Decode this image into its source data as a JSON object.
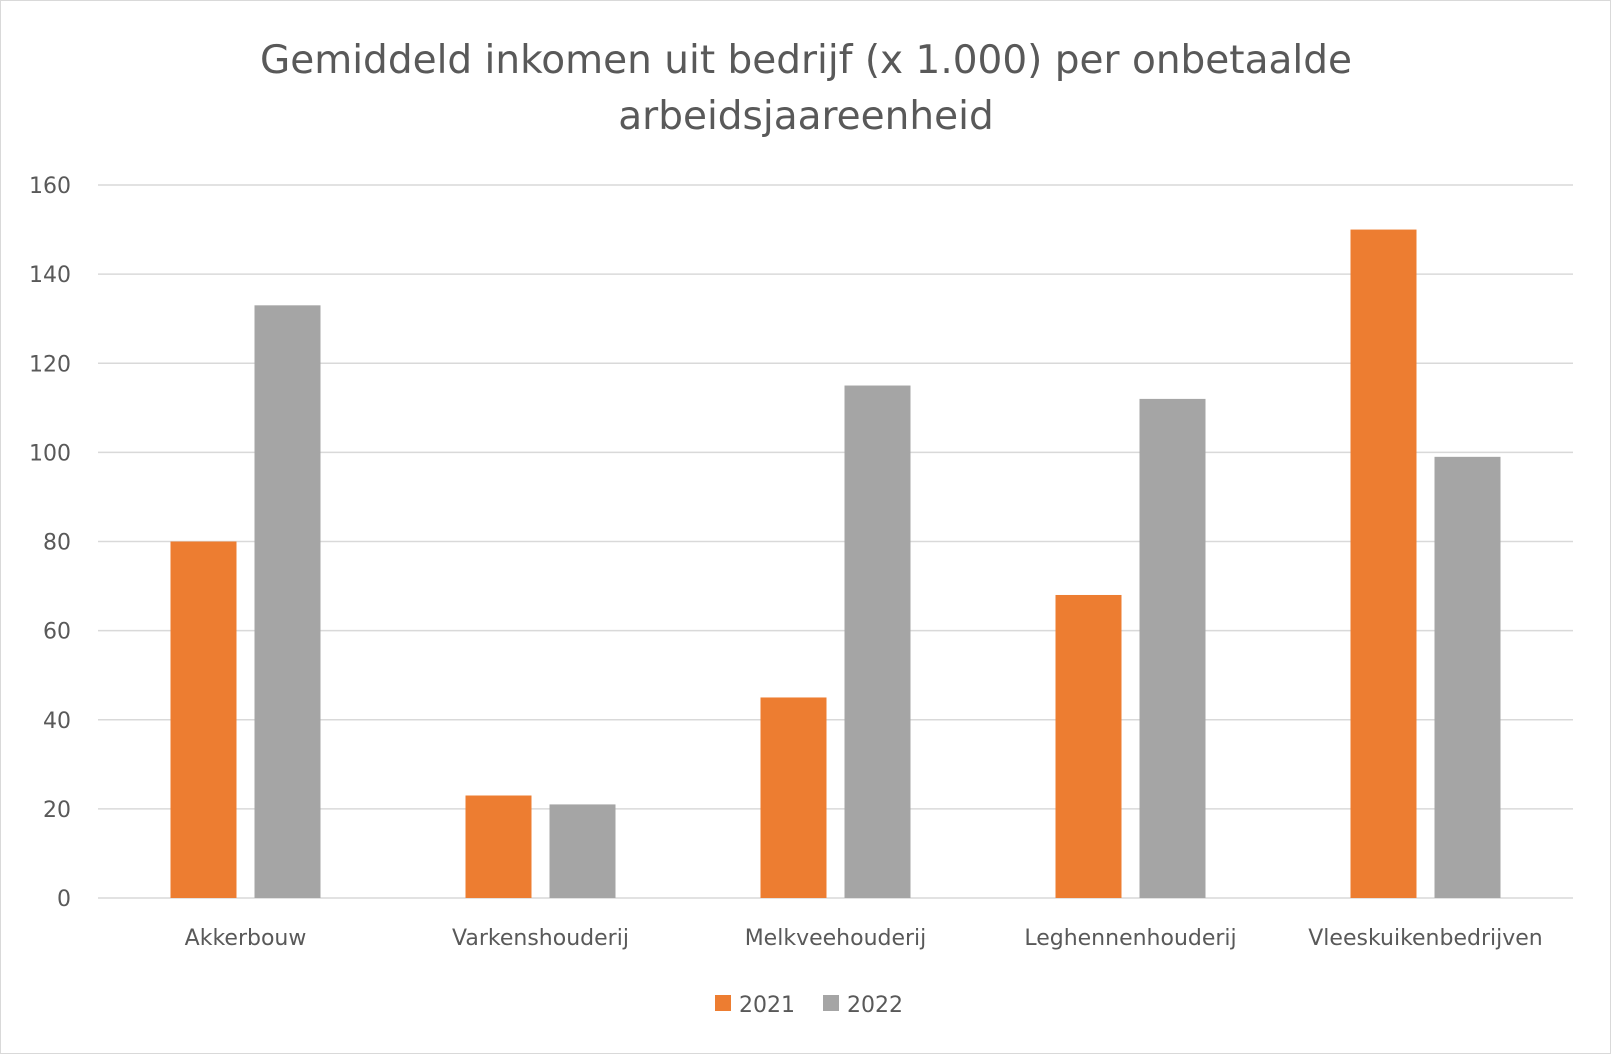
{
  "chart_data": {
    "type": "bar",
    "title_lines": [
      "Gemiddeld inkomen uit bedrijf (x 1.000) per onbetaalde",
      "arbeidsjaareenheid"
    ],
    "xlabel": "",
    "ylabel": "",
    "categories": [
      "Akkerbouw",
      "Varkenshouderij",
      "Melkveehouderij",
      "Leghennenhouderij",
      "Vleeskuikenbedrijven"
    ],
    "series": [
      {
        "name": "2021",
        "color": "#ED7D31",
        "values": [
          80,
          23,
          45,
          68,
          150
        ]
      },
      {
        "name": "2022",
        "color": "#A5A5A5",
        "values": [
          133,
          21,
          115,
          112,
          99
        ]
      }
    ],
    "ylim": [
      0,
      160
    ],
    "yticks": [
      0,
      20,
      40,
      60,
      80,
      100,
      120,
      140,
      160
    ],
    "grid": true,
    "gridline_color": "#d9d9d9",
    "legend_position": "bottom"
  }
}
